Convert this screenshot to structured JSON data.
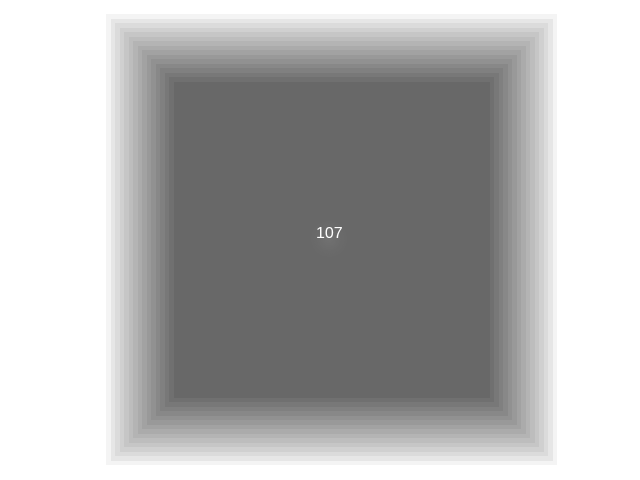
{
  "display": {
    "center_value": "107"
  },
  "colors": {
    "background": "#ffffff",
    "outer_gray": "#f4f4f4",
    "inner_gray": "#686868",
    "label": "#ffffff"
  }
}
